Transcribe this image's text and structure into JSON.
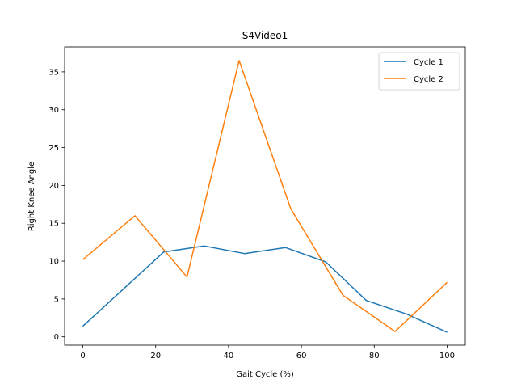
{
  "chart_data": {
    "type": "line",
    "title": "S4Video1",
    "xlabel": "Gait Cycle (%)",
    "ylabel": "Right Knee Angle",
    "xlim": [
      -5,
      105
    ],
    "ylim": [
      -1.1,
      38.3
    ],
    "xticks": [
      0,
      20,
      40,
      60,
      80,
      100
    ],
    "yticks": [
      0,
      5,
      10,
      15,
      20,
      25,
      30,
      35
    ],
    "legend_position": "top-right",
    "grid": false,
    "series": [
      {
        "name": "Cycle 1",
        "color": "#1f77b4",
        "x": [
          0,
          22.2,
          33.3,
          44.4,
          55.6,
          66.7,
          77.8,
          88.9,
          100
        ],
        "y": [
          1.4,
          11.2,
          12.0,
          11.0,
          11.8,
          9.9,
          4.8,
          3.0,
          0.6
        ]
      },
      {
        "name": "Cycle 2",
        "color": "#ff7f0e",
        "x": [
          0,
          14.3,
          28.6,
          42.9,
          57.1,
          71.4,
          85.7,
          100
        ],
        "y": [
          10.2,
          16.0,
          7.9,
          36.5,
          16.9,
          5.5,
          0.7,
          7.2
        ]
      }
    ]
  }
}
